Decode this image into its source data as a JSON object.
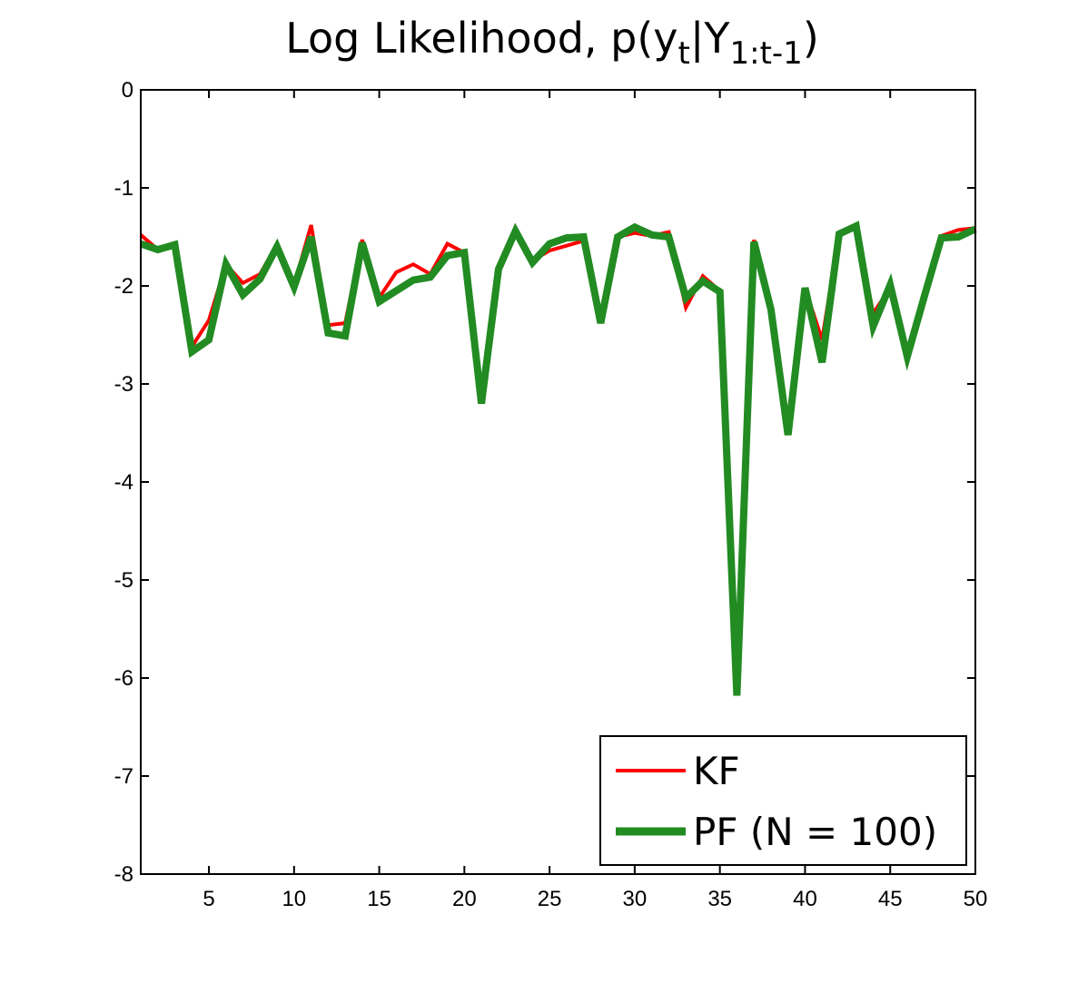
{
  "chart_data": {
    "type": "line",
    "title": {
      "main": "Log Likelihood, p(y",
      "sub1": "t",
      "mid": "|Y",
      "sub2": "1:t-1",
      "end": ")"
    },
    "xlabel": "",
    "ylabel": "",
    "xlim": [
      1,
      50
    ],
    "ylim": [
      -8,
      0
    ],
    "xticks": [
      5,
      10,
      15,
      20,
      25,
      30,
      35,
      40,
      45,
      50
    ],
    "yticks": [
      0,
      -1,
      -2,
      -3,
      -4,
      -5,
      -6,
      -7,
      -8
    ],
    "grid": false,
    "legend_position": "bottom-right",
    "x": [
      1,
      2,
      3,
      4,
      5,
      6,
      7,
      8,
      9,
      10,
      11,
      12,
      13,
      14,
      15,
      16,
      17,
      18,
      19,
      20,
      21,
      22,
      23,
      24,
      25,
      26,
      27,
      28,
      29,
      30,
      31,
      32,
      33,
      34,
      35,
      36,
      37,
      38,
      39,
      40,
      41,
      42,
      43,
      44,
      45,
      46,
      47,
      48,
      49,
      50
    ],
    "series": [
      {
        "name": "KF",
        "color": "#ff0000",
        "values": [
          -1.48,
          -1.63,
          -1.58,
          -2.62,
          -2.35,
          -1.78,
          -1.97,
          -1.88,
          -1.58,
          -1.99,
          -1.38,
          -2.4,
          -2.38,
          -1.53,
          -2.12,
          -1.86,
          -1.78,
          -1.88,
          -1.57,
          -1.66,
          -3.2,
          -1.83,
          -1.44,
          -1.74,
          -1.64,
          -1.59,
          -1.54,
          -2.38,
          -1.5,
          -1.46,
          -1.49,
          -1.45,
          -2.22,
          -1.9,
          -2.05,
          -6.18,
          -1.53,
          -2.24,
          -3.52,
          -2.02,
          -2.55,
          -1.47,
          -1.4,
          -2.28,
          -2.02,
          -2.72,
          -2.11,
          -1.49,
          -1.43,
          -1.41
        ]
      },
      {
        "name": "PF (N = 100)",
        "color": "#228b22",
        "values": [
          -1.57,
          -1.63,
          -1.58,
          -2.67,
          -2.55,
          -1.78,
          -2.09,
          -1.93,
          -1.6,
          -2.01,
          -1.5,
          -2.48,
          -2.51,
          -1.56,
          -2.16,
          -2.05,
          -1.94,
          -1.91,
          -1.69,
          -1.66,
          -3.2,
          -1.83,
          -1.44,
          -1.76,
          -1.57,
          -1.51,
          -1.5,
          -2.38,
          -1.5,
          -1.4,
          -1.48,
          -1.5,
          -2.12,
          -1.95,
          -2.06,
          -6.18,
          -1.55,
          -2.24,
          -3.52,
          -2.02,
          -2.78,
          -1.47,
          -1.39,
          -2.41,
          -1.99,
          -2.72,
          -2.11,
          -1.51,
          -1.5,
          -1.42
        ]
      }
    ]
  }
}
